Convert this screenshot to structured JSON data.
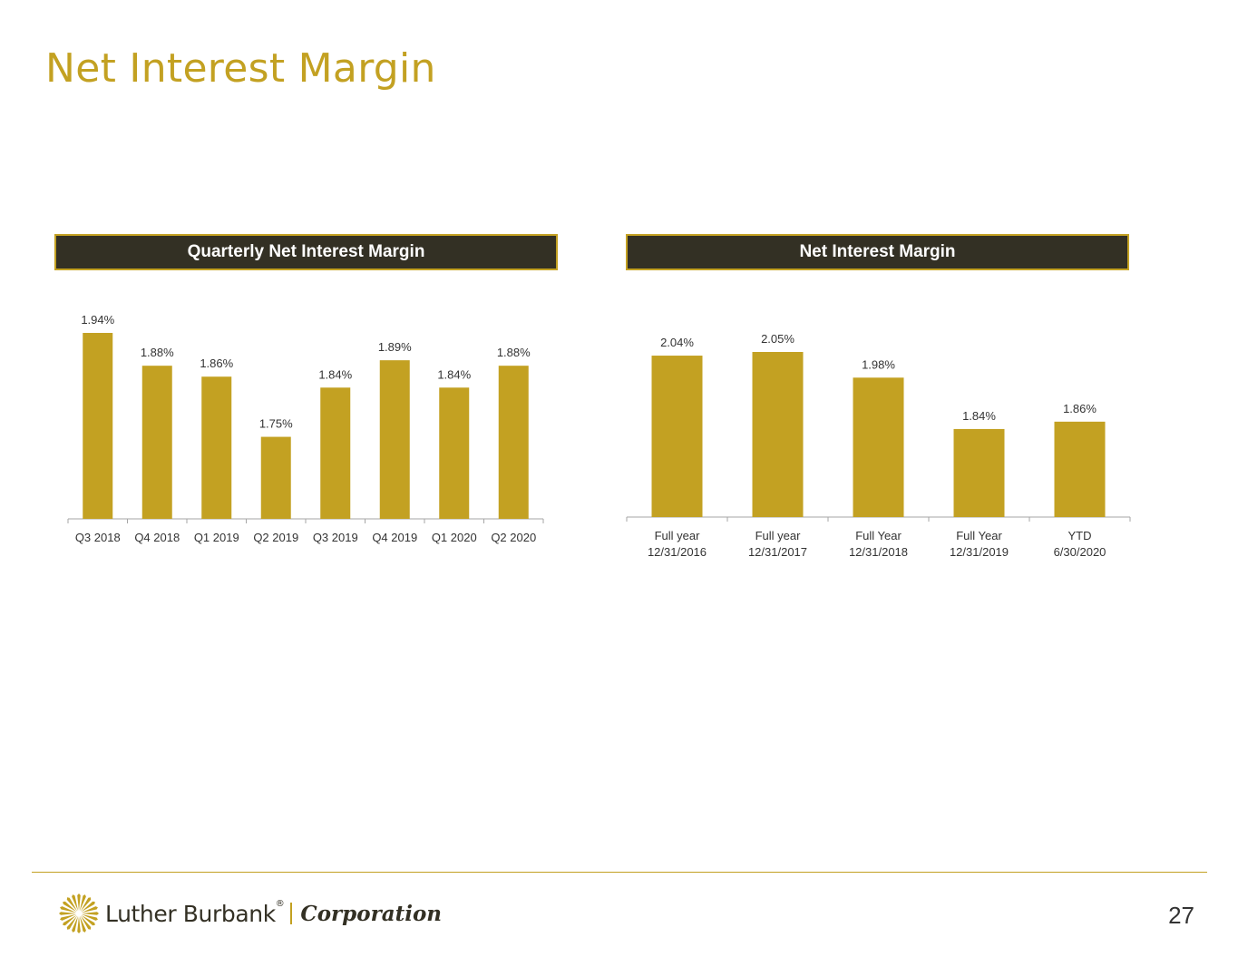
{
  "slide": {
    "title": "Net Interest Margin",
    "page_number": "27"
  },
  "colors": {
    "accent": "#c3a122",
    "header_bg": "#333024",
    "text": "#333333",
    "axis": "#a6a6a6"
  },
  "logo": {
    "icon": "sunburst-icon",
    "name": "Luther Burbank",
    "registered": "®",
    "suffix": "Corporation"
  },
  "chart_data": [
    {
      "id": "quarterly",
      "type": "bar",
      "title": "Quarterly Net Interest Margin",
      "categories": [
        "Q3 2018",
        "Q4 2018",
        "Q1 2019",
        "Q2 2019",
        "Q3 2019",
        "Q4 2019",
        "Q1 2020",
        "Q2 2020"
      ],
      "values": [
        1.94,
        1.88,
        1.86,
        1.75,
        1.84,
        1.89,
        1.84,
        1.88
      ],
      "value_labels": [
        "1.94%",
        "1.88%",
        "1.86%",
        "1.75%",
        "1.84%",
        "1.89%",
        "1.84%",
        "1.88%"
      ],
      "ylim": [
        1.6,
        1.94
      ],
      "grid": false,
      "legend": "none"
    },
    {
      "id": "annual",
      "type": "bar",
      "title": "Net Interest Margin",
      "categories": [
        [
          "Full year",
          "12/31/2016"
        ],
        [
          "Full year",
          "12/31/2017"
        ],
        [
          "Full Year",
          "12/31/2018"
        ],
        [
          "Full Year",
          "12/31/2019"
        ],
        [
          "YTD",
          "6/30/2020"
        ]
      ],
      "values": [
        2.04,
        2.05,
        1.98,
        1.84,
        1.86
      ],
      "value_labels": [
        "2.04%",
        "2.05%",
        "1.98%",
        "1.84%",
        "1.86%"
      ],
      "ylim": [
        1.6,
        2.05
      ],
      "grid": false,
      "legend": "none"
    }
  ]
}
